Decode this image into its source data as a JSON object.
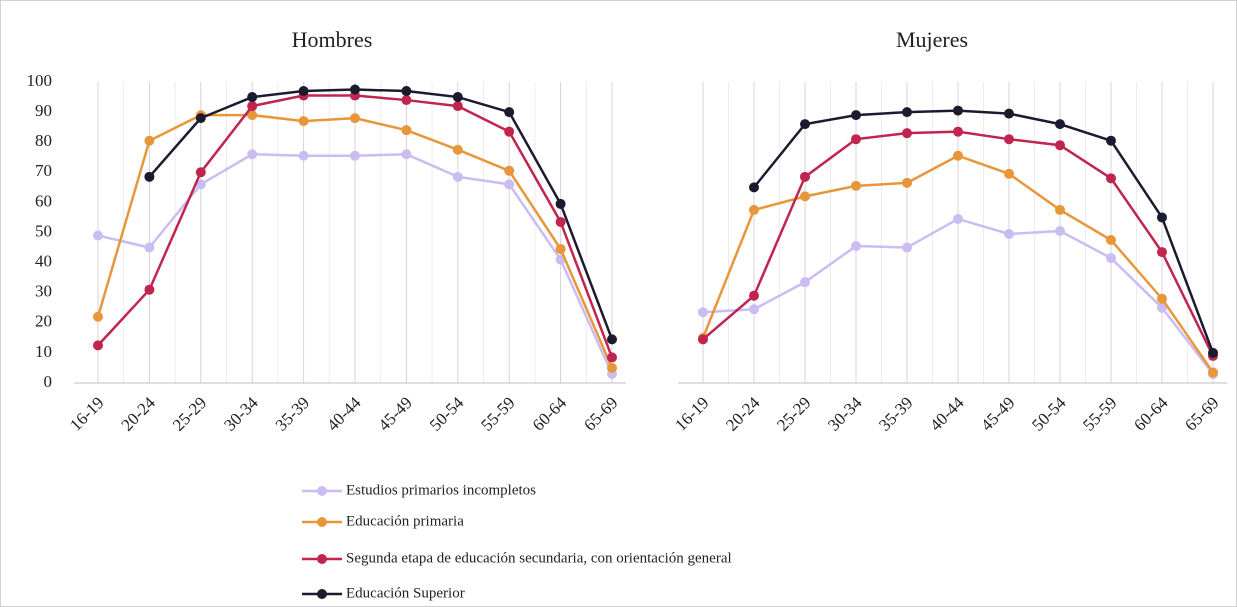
{
  "chart_data": [
    {
      "type": "line",
      "title": "Hombres",
      "categories": [
        "16-19",
        "20-24",
        "25-29",
        "30-34",
        "35-39",
        "40-44",
        "45-49",
        "50-54",
        "55-59",
        "60-64",
        "65-69"
      ],
      "ylim": [
        0,
        100
      ],
      "yticks": [
        0,
        10,
        20,
        30,
        40,
        50,
        60,
        70,
        80,
        90,
        100
      ],
      "series": [
        {
          "name": "Estudios primarios incompletos",
          "color": "#cbbcf2",
          "values": [
            49,
            45,
            66,
            76,
            75.5,
            75.5,
            76,
            68.5,
            66,
            41,
            3
          ]
        },
        {
          "name": "Educación primaria",
          "color": "#e8963a",
          "values": [
            22,
            80.5,
            89,
            89,
            87,
            88,
            84,
            77.5,
            70.5,
            44.5,
            5
          ]
        },
        {
          "name": "Segunda etapa de educación secundaria, con orientación general",
          "color": "#c0254f",
          "values": [
            12.5,
            31,
            70,
            92,
            95.5,
            95.5,
            94,
            92,
            83.5,
            53.5,
            8.5
          ]
        },
        {
          "name": "Educación Superior",
          "color": "#1b1b2f",
          "values": [
            null,
            68.5,
            88,
            95,
            97,
            97.5,
            97,
            95,
            90,
            59.5,
            14.5
          ]
        }
      ]
    },
    {
      "type": "line",
      "title": "Mujeres",
      "categories": [
        "16-19",
        "20-24",
        "25-29",
        "30-34",
        "35-39",
        "40-44",
        "45-49",
        "50-54",
        "55-59",
        "60-64",
        "65-69"
      ],
      "ylim": [
        0,
        100
      ],
      "series": [
        {
          "color": "#cbbcf2",
          "values": [
            23.5,
            24.5,
            33.5,
            45.5,
            45,
            54.5,
            49.5,
            50.5,
            41.5,
            25,
            3
          ]
        },
        {
          "color": "#e8963a",
          "values": [
            15,
            57.5,
            62,
            65.5,
            66.5,
            75.5,
            69.5,
            57.5,
            47.5,
            28,
            3.5
          ]
        },
        {
          "color": "#c0254f",
          "values": [
            14.5,
            29,
            68.5,
            81,
            83,
            83.5,
            81,
            79,
            68,
            43.5,
            9
          ]
        },
        {
          "color": "#1b1b2f",
          "values": [
            null,
            65,
            86,
            89,
            90,
            90.5,
            89.5,
            86,
            80.5,
            55,
            10
          ]
        }
      ]
    }
  ]
}
